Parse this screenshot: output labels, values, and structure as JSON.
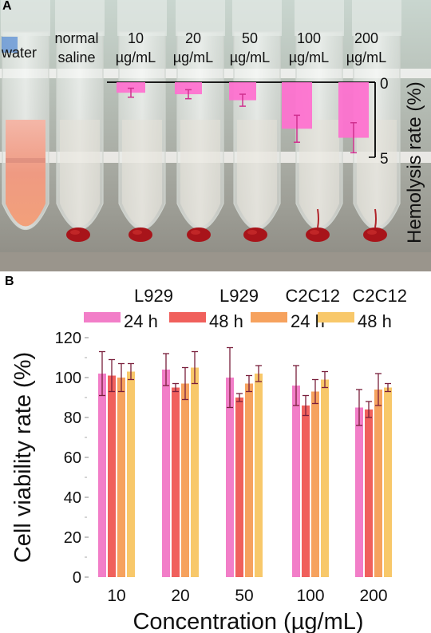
{
  "panel_a": {
    "label": "A",
    "tube_labels": [
      [
        "water"
      ],
      [
        "normal",
        "saline"
      ],
      [
        "10",
        "µg/mL"
      ],
      [
        "20",
        "µg/mL"
      ],
      [
        "50",
        "µg/mL"
      ],
      [
        "100",
        "µg/mL"
      ],
      [
        "200",
        "µg/mL"
      ]
    ]
  },
  "panel_b": {
    "label": "B"
  },
  "colors": {
    "l929_24h": "#f27ec8",
    "l929_48h": "#f0605c",
    "c2c12_24h": "#f6a25e",
    "c2c12_48h": "#f8c86a",
    "errorbar": "#7a1f3c",
    "hemolysis_bar": "#ff6fcf"
  },
  "chart_data": [
    {
      "type": "bar",
      "panel": "A",
      "categories": [
        "10 µg/mL",
        "20 µg/mL",
        "50 µg/mL",
        "100 µg/mL",
        "200 µg/mL"
      ],
      "values": [
        0.7,
        0.8,
        1.2,
        3.1,
        3.7
      ],
      "errors": [
        0.3,
        0.3,
        0.4,
        0.9,
        1.0
      ],
      "ylabel": "Hemolysis rate (%)",
      "ylim": [
        0,
        5
      ],
      "yticks": [
        "0",
        "5"
      ],
      "axis_side": "right",
      "inverted": true,
      "grid": false
    },
    {
      "type": "bar",
      "panel": "B",
      "categories": [
        "10",
        "20",
        "50",
        "100",
        "200"
      ],
      "series": [
        {
          "name": "L929\n24 h",
          "values": [
            102,
            104,
            100,
            96,
            85
          ],
          "errors": [
            11,
            8,
            15,
            10,
            9
          ]
        },
        {
          "name": "L929\n48 h",
          "values": [
            101,
            95,
            90,
            86,
            84
          ],
          "errors": [
            8,
            2,
            2,
            5,
            4
          ]
        },
        {
          "name": "C2C12\n24 h",
          "values": [
            100,
            97,
            97,
            93,
            94
          ],
          "errors": [
            7,
            8,
            4,
            6,
            8
          ]
        },
        {
          "name": "C2C12\n48 h",
          "values": [
            103,
            105,
            102,
            99,
            95
          ],
          "errors": [
            4,
            8,
            4,
            4,
            2
          ]
        }
      ],
      "legend": [
        {
          "line1": "L929",
          "line2": "24 h"
        },
        {
          "line1": "L929",
          "line2": "48 h"
        },
        {
          "line1": "C2C12",
          "line2": "24 h"
        },
        {
          "line1": "C2C12",
          "line2": "48 h"
        }
      ],
      "xlabel": "Concentration (µg/mL)",
      "ylabel": "Cell viability rate (%)",
      "ylim": [
        0,
        120
      ],
      "yticks": [
        "0",
        "20",
        "40",
        "60",
        "80",
        "100",
        "120"
      ],
      "legend_position": "top",
      "grid": false
    }
  ]
}
